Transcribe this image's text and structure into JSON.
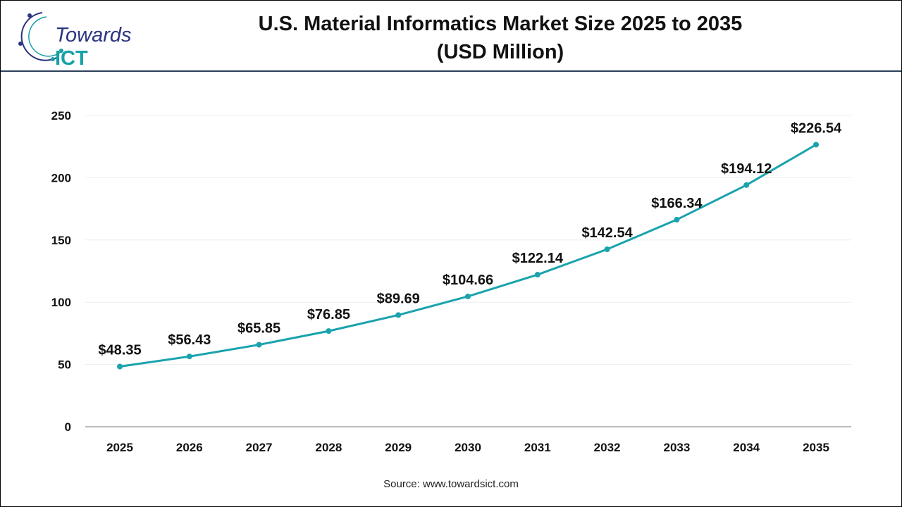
{
  "logo": {
    "text_main": "Towards",
    "text_accent": "ICT"
  },
  "title_line1": "U.S. Material Informatics Market Size 2025 to 2035",
  "title_line2": "(USD Million)",
  "source": "Source: www.towardsict.com",
  "colors": {
    "line": "#1aa3ad",
    "header_rule": "#2d3e5c",
    "logo_blue": "#2a3580",
    "logo_teal": "#16a0a8"
  },
  "chart_data": {
    "type": "line",
    "title": "U.S. Material Informatics Market Size 2025 to 2035 (USD Million)",
    "categories": [
      "2025",
      "2026",
      "2027",
      "2028",
      "2029",
      "2030",
      "2031",
      "2032",
      "2033",
      "2034",
      "2035"
    ],
    "values": [
      48.35,
      56.43,
      65.85,
      76.85,
      89.69,
      104.66,
      122.14,
      142.54,
      166.34,
      194.12,
      226.54
    ],
    "data_labels": [
      "$48.35",
      "$56.43",
      "$65.85",
      "$76.85",
      "$89.69",
      "$104.66",
      "$122.14",
      "$142.54",
      "$166.34",
      "$194.12",
      "$226.54"
    ],
    "ylim": [
      0,
      250
    ],
    "yticks": [
      0,
      50,
      100,
      150,
      200,
      250
    ],
    "grid": true,
    "xlabel": "",
    "ylabel": ""
  }
}
